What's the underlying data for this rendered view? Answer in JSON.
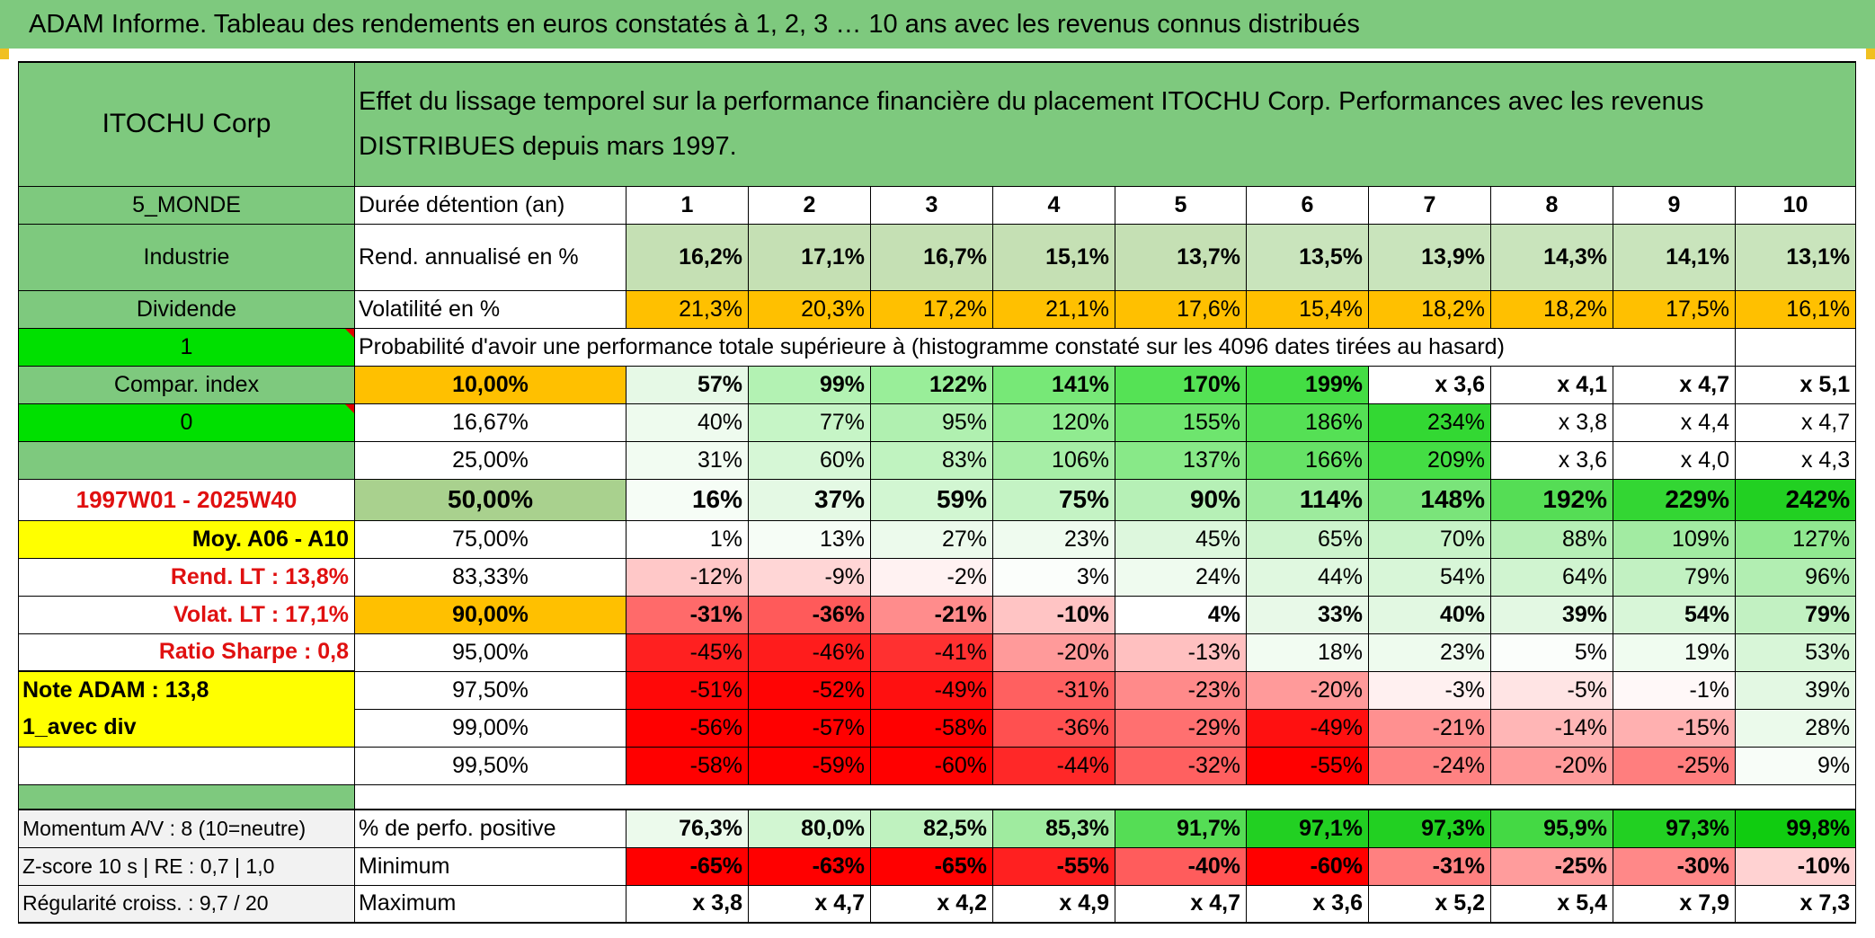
{
  "title": "ADAM Informe. Tableau des rendements en euros constatés à 1, 2, 3 … 10 ans avec les revenus connus distribués",
  "header": {
    "company": "ITOCHU Corp",
    "description": "Effet du lissage temporel sur la performance financière du placement ITOCHU Corp. Performances avec les revenus DISTRIBUES depuis mars 1997."
  },
  "left_panel": {
    "zone": "5_MONDE",
    "sector": "Industrie",
    "type": "Dividende",
    "input1": "1",
    "compar_label": "Compar. index",
    "input2": "0",
    "period": "1997W01 - 2025W40",
    "moy": "Moy. A06 - A10",
    "rend_lt": "Rend. LT :   13,8%",
    "volat_lt": "Volat. LT :   17,1%",
    "sharpe": "Ratio Sharpe :   0,8",
    "note": "Note ADAM : 13,8",
    "mode": "1_avec div",
    "momentum": "Momentum A/V : 8 (10=neutre)",
    "zscore": "Z-score 10 s | RE : 0,7 | 1,0",
    "regularite": "Régularité croiss. : 9,7 / 20"
  },
  "labels": {
    "duration": "Durée détention (an)",
    "rend": "Rend. annualisé en %",
    "vol": "Volatilité en %",
    "proba": "Probabilité d'avoir une performance totale supérieure à (histogramme constaté sur les 4096 dates tirées au hasard)",
    "positive": "% de perfo. positive",
    "minimum": "Minimum",
    "maximum": "Maximum"
  },
  "years": [
    "1",
    "2",
    "3",
    "4",
    "5",
    "6",
    "7",
    "8",
    "9",
    "10"
  ],
  "rend": [
    "16,2%",
    "17,1%",
    "16,7%",
    "15,1%",
    "13,7%",
    "13,5%",
    "13,9%",
    "14,3%",
    "14,1%",
    "13,1%"
  ],
  "vol": [
    "21,3%",
    "20,3%",
    "17,2%",
    "21,1%",
    "17,6%",
    "15,4%",
    "18,2%",
    "18,2%",
    "17,5%",
    "16,1%"
  ],
  "vol_colors": [
    "#ffc000",
    "#ffc000",
    "#ffc000",
    "#ffc000",
    "#ffc000",
    "#ffc000",
    "#ffc000",
    "#ffc000",
    "#ffc000",
    "#ffc000"
  ],
  "proba_rows": [
    {
      "pct": "10,00%",
      "bold": true,
      "pct_bg": "#ffc000",
      "values": [
        "57%",
        "99%",
        "122%",
        "141%",
        "170%",
        "199%",
        "x 3,6",
        "x 4,1",
        "x 4,7",
        "x 5,1"
      ],
      "colors": [
        "#e6f9e6",
        "#b3f2b3",
        "#99ee99",
        "#77e877",
        "#55e255",
        "#44dd44",
        "#ffffff",
        "#ffffff",
        "#ffffff",
        "#ffffff"
      ]
    },
    {
      "pct": "16,67%",
      "bold": false,
      "pct_bg": "#ffffff",
      "values": [
        "40%",
        "77%",
        "95%",
        "120%",
        "155%",
        "186%",
        "234%",
        "x 3,8",
        "x 4,4",
        "x 4,7"
      ],
      "colors": [
        "#eefbee",
        "#c6f5c6",
        "#b0f0b0",
        "#90eb90",
        "#6ee56e",
        "#55e055",
        "#33d833",
        "#ffffff",
        "#ffffff",
        "#ffffff"
      ]
    },
    {
      "pct": "25,00%",
      "bold": false,
      "pct_bg": "#ffffff",
      "values": [
        "31%",
        "60%",
        "83%",
        "106%",
        "137%",
        "166%",
        "209%",
        "x 3,6",
        "x 4,0",
        "x 4,3"
      ],
      "colors": [
        "#f2fcf2",
        "#d6f7d6",
        "#c0f3c0",
        "#a6ee a6",
        "#88e988",
        "#66e266",
        "#44dd44",
        "#ffffff",
        "#ffffff",
        "#ffffff"
      ]
    },
    {
      "pct": "50,00%",
      "bold": true,
      "big": true,
      "pct_bg": "#a9d18e",
      "values": [
        "16%",
        "37%",
        "59%",
        "75%",
        "90%",
        "114%",
        "148%",
        "192%",
        "229%",
        "242%"
      ],
      "colors": [
        "#f6fdf6",
        "#e4f9e4",
        "#d2f6d2",
        "#c4f3c4",
        "#b6f0b6",
        "#9deb9d",
        "#7ae47a",
        "#55dd55",
        "#33d633",
        "#22d022"
      ]
    },
    {
      "pct": "75,00%",
      "bold": false,
      "pct_bg": "#ffffff",
      "values": [
        "1%",
        "13%",
        "27%",
        "23%",
        "45%",
        "65%",
        "70%",
        "88%",
        "109%",
        "127%"
      ],
      "colors": [
        "#ffffff",
        "#f6fdf6",
        "#ecfaec",
        "#effbef",
        "#ddf7dd",
        "#cdf4cd",
        "#c8f3c8",
        "#b6efb6",
        "#a2eba2",
        "#90e890"
      ]
    },
    {
      "pct": "83,33%",
      "bold": false,
      "pct_bg": "#ffffff",
      "values": [
        "-12%",
        "-9%",
        "-2%",
        "3%",
        "24%",
        "44%",
        "54%",
        "64%",
        "79%",
        "96%"
      ],
      "colors": [
        "#ffc8c8",
        "#ffd6d6",
        "#fff2f2",
        "#fbfefb",
        "#effbef",
        "#e0f8e0",
        "#d8f6d8",
        "#d0f4d0",
        "#c2f1c2",
        "#b2eeb2"
      ]
    },
    {
      "pct": "90,00%",
      "bold": true,
      "pct_bg": "#ffc000",
      "values": [
        "-31%",
        "-36%",
        "-21%",
        "-10%",
        "4%",
        "33%",
        "40%",
        "39%",
        "54%",
        "79%"
      ],
      "colors": [
        "#ff6a6a",
        "#ff5a5a",
        "#ff8c8c",
        "#ffc4c4",
        "#ffffff",
        "#e8f9e8",
        "#e2f8e2",
        "#e3f8e3",
        "#d8f6d8",
        "#c2f1c2"
      ]
    },
    {
      "pct": "95,00%",
      "bold": false,
      "pct_bg": "#ffffff",
      "values": [
        "-45%",
        "-46%",
        "-41%",
        "-20%",
        "-13%",
        "18%",
        "23%",
        "5%",
        "19%",
        "53%"
      ],
      "colors": [
        "#ff2020",
        "#ff1c1c",
        "#ff3030",
        "#ff9a9a",
        "#ffc0c0",
        "#f2fcf2",
        "#eefbee",
        "#fbfefb",
        "#f0fcf0",
        "#d8f6d8"
      ]
    },
    {
      "pct": "97,50%",
      "bold": false,
      "pct_bg": "#ffffff",
      "values": [
        "-51%",
        "-52%",
        "-49%",
        "-31%",
        "-23%",
        "-20%",
        "-3%",
        "-5%",
        "-1%",
        "39%"
      ],
      "colors": [
        "#ff0808",
        "#ff0404",
        "#ff1010",
        "#ff6060",
        "#ff8a8a",
        "#ff9a9a",
        "#fff0f0",
        "#ffe4e4",
        "#fff8f8",
        "#e3f8e3"
      ]
    },
    {
      "pct": "99,00%",
      "bold": false,
      "pct_bg": "#ffffff",
      "values": [
        "-56%",
        "-57%",
        "-58%",
        "-36%",
        "-29%",
        "-49%",
        "-21%",
        "-14%",
        "-15%",
        "28%"
      ],
      "colors": [
        "#ff0000",
        "#ff0000",
        "#ff0000",
        "#ff5050",
        "#ff7070",
        "#ff1010",
        "#ff9090",
        "#ffb6b6",
        "#ffb0b0",
        "#ebfaeb"
      ]
    },
    {
      "pct": "99,50%",
      "bold": false,
      "pct_bg": "#ffffff",
      "values": [
        "-58%",
        "-59%",
        "-60%",
        "-44%",
        "-32%",
        "-55%",
        "-24%",
        "-20%",
        "-25%",
        "9%"
      ],
      "colors": [
        "#ff0000",
        "#ff0000",
        "#ff0000",
        "#ff2828",
        "#ff6060",
        "#ff0000",
        "#ff8282",
        "#ff9a9a",
        "#ff7e7e",
        "#f8fdf8"
      ]
    }
  ],
  "positive": [
    "76,3%",
    "80,0%",
    "82,5%",
    "85,3%",
    "91,7%",
    "97,1%",
    "97,3%",
    "95,9%",
    "97,3%",
    "99,8%"
  ],
  "positive_colors": [
    "#ecfaec",
    "#d2f6d2",
    "#bff2bf",
    "#9feb9f",
    "#55dd55",
    "#22d022",
    "#22d022",
    "#44d944",
    "#22d022",
    "#10cc10"
  ],
  "minimum": [
    "-65%",
    "-63%",
    "-65%",
    "-55%",
    "-40%",
    "-60%",
    "-31%",
    "-25%",
    "-30%",
    "-10%"
  ],
  "minimum_colors": [
    "#ff0000",
    "#ff0000",
    "#ff0000",
    "#ff2020",
    "#ff5c5c",
    "#ff0000",
    "#ff8080",
    "#ff9c9c",
    "#ff8888",
    "#ffd2d2"
  ],
  "maximum": [
    "x 3,8",
    "x 4,7",
    "x 4,2",
    "x 4,9",
    "x 4,7",
    "x 3,6",
    "x 5,2",
    "x 5,4",
    "x 7,9",
    "x 7,3"
  ]
}
